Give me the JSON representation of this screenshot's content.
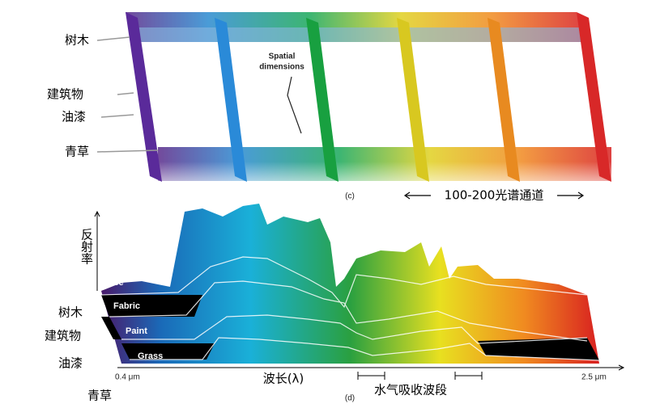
{
  "top_panel": {
    "labels": [
      "树木",
      "建筑物",
      "油漆",
      "青草"
    ],
    "spatial": [
      "Spatial",
      "dimensions"
    ],
    "caption": "(c)",
    "channels": "100-200光谱通道"
  },
  "bottom_panel": {
    "y_label": "反射率",
    "layers": [
      "Tree",
      "Fabric",
      "Paint",
      "Grass"
    ],
    "labels": [
      "树木",
      "建筑物",
      "油漆",
      "青草"
    ],
    "x_start": "0.4 μm",
    "x_end": "2.5 μm",
    "x_label": "波长(λ)",
    "absorption": "水气吸收波段",
    "caption": "(d)"
  }
}
